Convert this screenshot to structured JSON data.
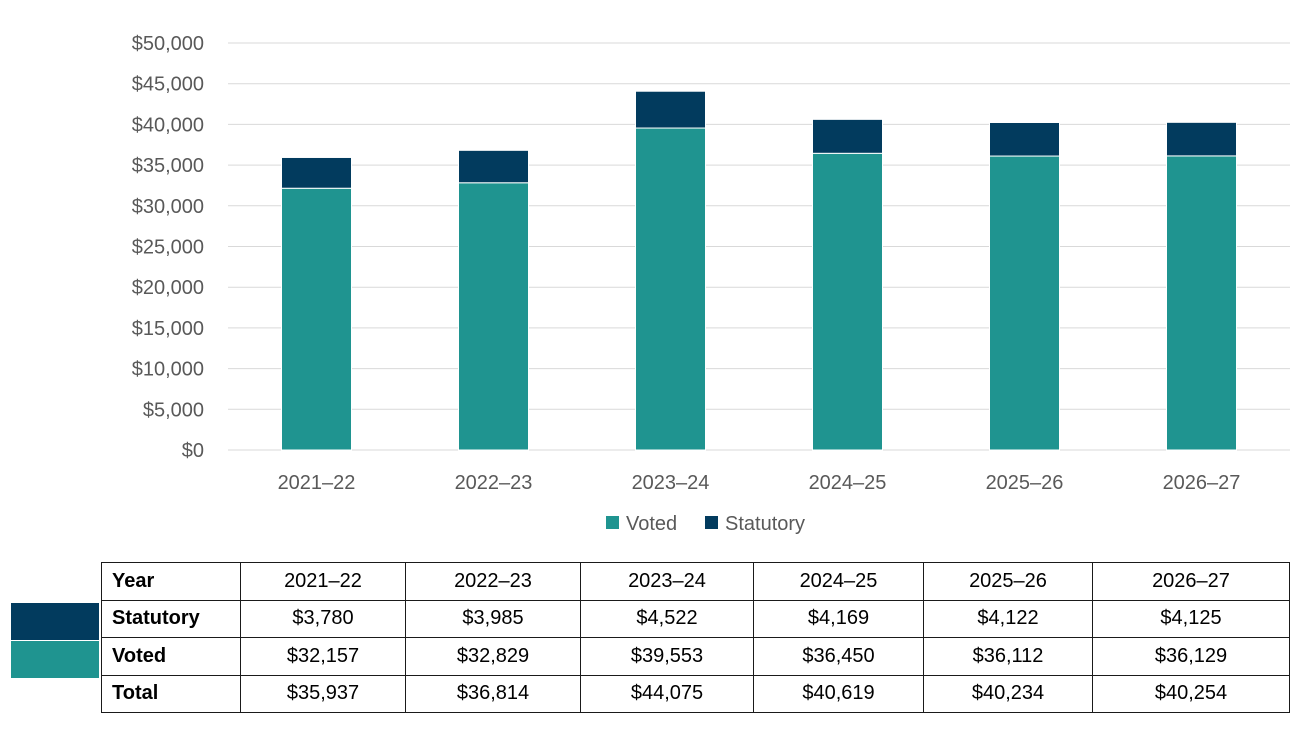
{
  "chart_data": {
    "type": "bar",
    "stacked": true,
    "categories": [
      "2021–22",
      "2022–23",
      "2023–24",
      "2024–25",
      "2025–26",
      "2026–27"
    ],
    "series": [
      {
        "name": "Voted",
        "color": "#1f9490",
        "values": [
          32157,
          32829,
          39553,
          36450,
          36112,
          36129
        ]
      },
      {
        "name": "Statutory",
        "color": "#023b5e",
        "values": [
          3780,
          3985,
          4522,
          4169,
          4122,
          4125
        ]
      }
    ],
    "ylim": [
      0,
      50000
    ],
    "yticks": [
      "$0",
      "$5,000",
      "$10,000",
      "$15,000",
      "$20,000",
      "$25,000",
      "$30,000",
      "$35,000",
      "$40,000",
      "$45,000",
      "$50,000"
    ],
    "grid": true,
    "legend": "bottom"
  },
  "table": {
    "header": [
      "Year",
      "2021–22",
      "2022–23",
      "2023–24",
      "2024–25",
      "2025–26",
      "2026–27"
    ],
    "rows": [
      [
        "Statutory",
        "$3,780",
        "$3,985",
        "$4,522",
        "$4,169",
        "$4,122",
        "$4,125"
      ],
      [
        "Voted",
        "$32,157",
        "$32,829",
        "$39,553",
        "$36,450",
        "$36,112",
        "$36,129"
      ],
      [
        "Total",
        "$35,937",
        "$36,814",
        "$44,075",
        "$40,619",
        "$40,234",
        "$40,254"
      ]
    ]
  }
}
